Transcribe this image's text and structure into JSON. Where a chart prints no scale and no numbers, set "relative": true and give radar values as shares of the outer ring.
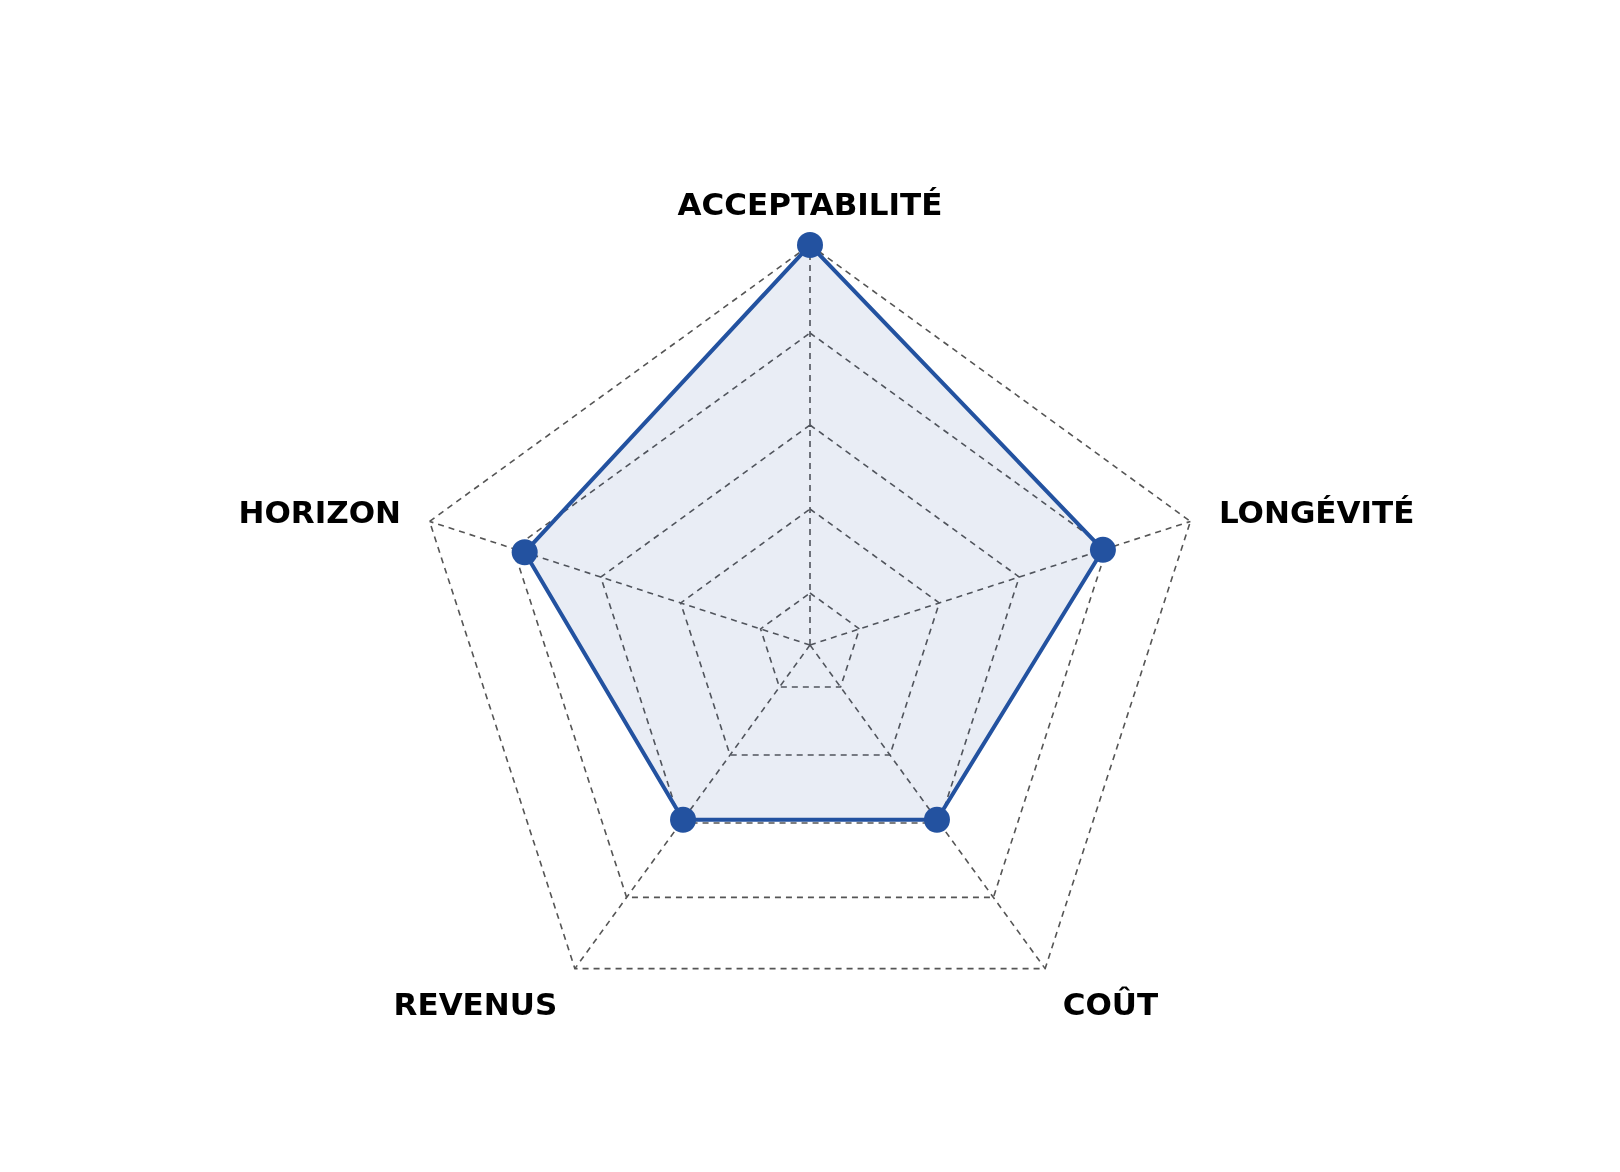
{
  "chart_data": {
    "type": "radar",
    "relative": true,
    "categories": [
      "ACCEPTABILITÉ",
      "LONGÉVITÉ",
      "COÛT",
      "REVENUS",
      "HORIZON"
    ],
    "series": [
      {
        "color": "#2352a0",
        "values": [
          1,
          0.77,
          0.54,
          0.54,
          0.75
        ]
      }
    ],
    "marker": "circle",
    "grid": true,
    "legend": false
  }
}
